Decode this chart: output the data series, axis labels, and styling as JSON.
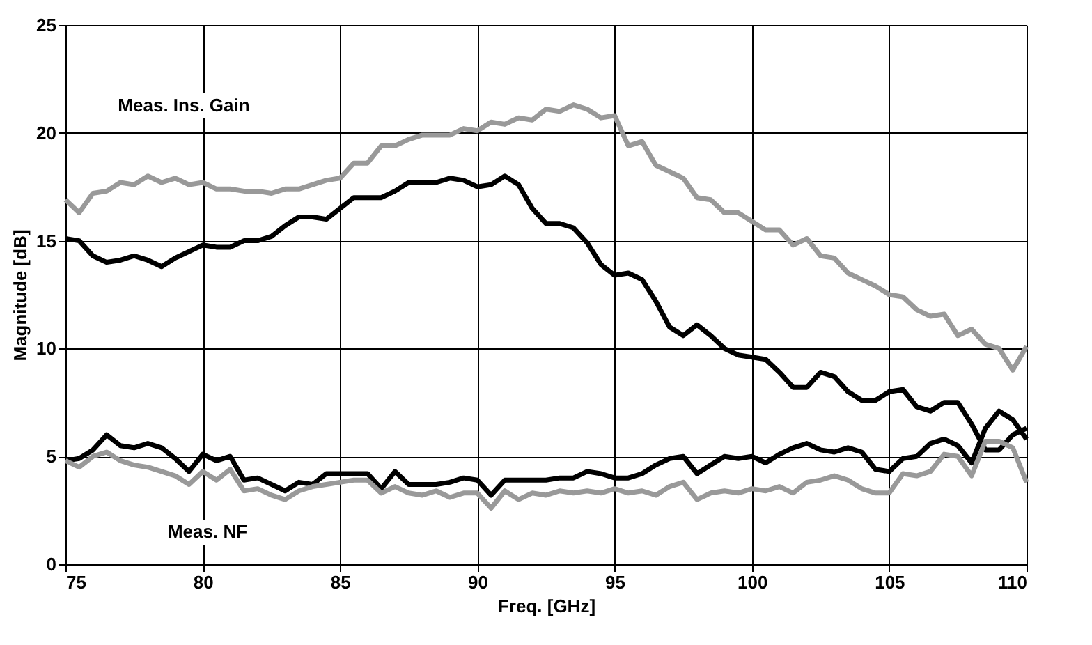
{
  "chart_data": {
    "type": "line",
    "xlabel": "Freq. [GHz]",
    "ylabel": "Magnitude [dB]",
    "x": [
      75,
      75.5,
      76,
      76.5,
      77,
      77.5,
      78,
      78.5,
      79,
      79.5,
      80,
      80.5,
      81,
      81.5,
      82,
      82.5,
      83,
      83.5,
      84,
      84.5,
      85,
      85.5,
      86,
      86.5,
      87,
      87.5,
      88,
      88.5,
      89,
      89.5,
      90,
      90.5,
      91,
      91.5,
      92,
      92.5,
      93,
      93.5,
      94,
      94.5,
      95,
      95.5,
      96,
      96.5,
      97,
      97.5,
      98,
      98.5,
      99,
      99.5,
      100,
      100.5,
      101,
      101.5,
      102,
      102.5,
      103,
      103.5,
      104,
      104.5,
      105,
      105.5,
      106,
      106.5,
      107,
      107.5,
      108,
      108.5,
      109,
      109.5,
      110
    ],
    "series": [
      {
        "color": "#999999",
        "values": [
          16.9,
          16.3,
          17.2,
          17.3,
          17.7,
          17.6,
          18.0,
          17.7,
          17.9,
          17.6,
          17.7,
          17.4,
          17.4,
          17.3,
          17.3,
          17.2,
          17.4,
          17.4,
          17.6,
          17.8,
          17.9,
          18.6,
          18.6,
          19.4,
          19.4,
          19.7,
          19.9,
          19.9,
          19.9,
          20.2,
          20.1,
          20.5,
          20.4,
          20.7,
          20.6,
          21.1,
          21.0,
          21.3,
          21.1,
          20.7,
          20.8,
          19.4,
          19.6,
          18.5,
          18.2,
          17.9,
          17.0,
          16.9,
          16.3,
          16.3,
          15.9,
          15.5,
          15.5,
          14.8,
          15.1,
          14.3,
          14.2,
          13.5,
          13.2,
          12.9,
          12.5,
          12.4,
          11.8,
          11.5,
          11.6,
          10.6,
          10.9,
          10.2,
          10.0,
          9.0,
          10.1
        ]
      },
      {
        "color": "#000000",
        "values": [
          15.1,
          15.0,
          14.3,
          14.0,
          14.1,
          14.3,
          14.1,
          13.8,
          14.2,
          14.5,
          14.8,
          14.7,
          14.7,
          15.0,
          15.0,
          15.2,
          15.7,
          16.1,
          16.1,
          16.0,
          16.5,
          17.0,
          17.0,
          17.0,
          17.3,
          17.7,
          17.7,
          17.7,
          17.9,
          17.8,
          17.5,
          17.6,
          18.0,
          17.6,
          16.5,
          15.8,
          15.8,
          15.6,
          14.9,
          13.9,
          13.4,
          13.5,
          13.2,
          12.2,
          11.0,
          10.6,
          11.1,
          10.6,
          10.0,
          9.7,
          9.6,
          9.5,
          8.9,
          8.2,
          8.2,
          8.9,
          8.7,
          8.0,
          7.6,
          7.6,
          8.0,
          8.1,
          7.3,
          7.1,
          7.5,
          7.5,
          6.5,
          5.3,
          5.3,
          6.0,
          6.3
        ]
      },
      {
        "color": "#000000",
        "values": [
          4.8,
          4.9,
          5.3,
          6.0,
          5.5,
          5.4,
          5.6,
          5.4,
          4.9,
          4.3,
          5.1,
          4.8,
          5.0,
          3.9,
          4.0,
          3.7,
          3.4,
          3.8,
          3.7,
          4.2,
          4.2,
          4.2,
          4.2,
          3.5,
          4.3,
          3.7,
          3.7,
          3.7,
          3.8,
          4.0,
          3.9,
          3.2,
          3.9,
          3.9,
          3.9,
          3.9,
          4.0,
          4.0,
          4.3,
          4.2,
          4.0,
          4.0,
          4.2,
          4.6,
          4.9,
          5.0,
          4.2,
          4.6,
          5.0,
          4.9,
          5.0,
          4.7,
          5.1,
          5.4,
          5.6,
          5.3,
          5.2,
          5.4,
          5.2,
          4.4,
          4.3,
          4.9,
          5.0,
          5.6,
          5.8,
          5.5,
          4.7,
          6.3,
          7.1,
          6.7,
          5.8
        ]
      },
      {
        "color": "#999999",
        "values": [
          4.8,
          4.5,
          5.0,
          5.2,
          4.8,
          4.6,
          4.5,
          4.3,
          4.1,
          3.7,
          4.3,
          3.9,
          4.4,
          3.4,
          3.5,
          3.2,
          3.0,
          3.4,
          3.6,
          3.7,
          3.8,
          3.9,
          3.9,
          3.3,
          3.6,
          3.3,
          3.2,
          3.4,
          3.1,
          3.3,
          3.3,
          2.6,
          3.4,
          3.0,
          3.3,
          3.2,
          3.4,
          3.3,
          3.4,
          3.3,
          3.5,
          3.3,
          3.4,
          3.2,
          3.6,
          3.8,
          3.0,
          3.3,
          3.4,
          3.3,
          3.5,
          3.4,
          3.6,
          3.3,
          3.8,
          3.9,
          4.1,
          3.9,
          3.5,
          3.3,
          3.3,
          4.2,
          4.1,
          4.3,
          5.1,
          5.0,
          4.1,
          5.7,
          5.7,
          5.4,
          3.8
        ]
      }
    ],
    "annotations": [
      "Meas. Ins. Gain",
      "Meas. NF"
    ],
    "xlim": [
      75,
      110
    ],
    "xticks": [
      75,
      80,
      85,
      90,
      95,
      100,
      105,
      110
    ],
    "ylim": [
      0,
      25
    ],
    "yticks": [
      0,
      5,
      10,
      15,
      20,
      25
    ],
    "grid": true,
    "legend": false,
    "marker": "none",
    "line_style": "solid"
  }
}
